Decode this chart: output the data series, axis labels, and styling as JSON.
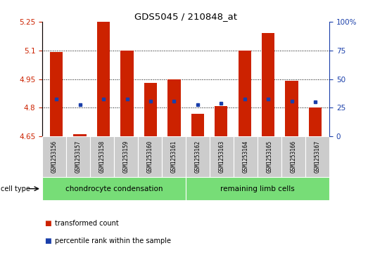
{
  "title": "GDS5045 / 210848_at",
  "samples": [
    "GSM1253156",
    "GSM1253157",
    "GSM1253158",
    "GSM1253159",
    "GSM1253160",
    "GSM1253161",
    "GSM1253162",
    "GSM1253163",
    "GSM1253164",
    "GSM1253165",
    "GSM1253166",
    "GSM1253167"
  ],
  "bar_values": [
    5.09,
    4.66,
    5.25,
    5.1,
    4.93,
    4.95,
    4.77,
    4.81,
    5.1,
    5.19,
    4.94,
    4.8
  ],
  "bar_bottom": 4.65,
  "dot_values": [
    4.845,
    4.815,
    4.845,
    4.845,
    4.835,
    4.835,
    4.815,
    4.825,
    4.845,
    4.845,
    4.835,
    4.83
  ],
  "ylim_left": [
    4.65,
    5.25
  ],
  "ylim_right": [
    0,
    100
  ],
  "yticks_left": [
    4.65,
    4.8,
    4.95,
    5.1,
    5.25
  ],
  "ytick_labels_left": [
    "4.65",
    "4.8",
    "4.95",
    "5.1",
    "5.25"
  ],
  "yticks_right": [
    0,
    25,
    50,
    75,
    100
  ],
  "ytick_labels_right": [
    "0",
    "25",
    "50",
    "75",
    "100%"
  ],
  "grid_values": [
    4.8,
    4.95,
    5.1
  ],
  "bar_color": "#cc2200",
  "dot_color": "#1a3faa",
  "group1_label": "chondrocyte condensation",
  "group2_label": "remaining limb cells",
  "cell_type_label": "cell type",
  "legend_bar_label": "transformed count",
  "legend_dot_label": "percentile rank within the sample",
  "group_color": "#77dd77",
  "label_area_color": "#cccccc",
  "background_color": "#ffffff"
}
